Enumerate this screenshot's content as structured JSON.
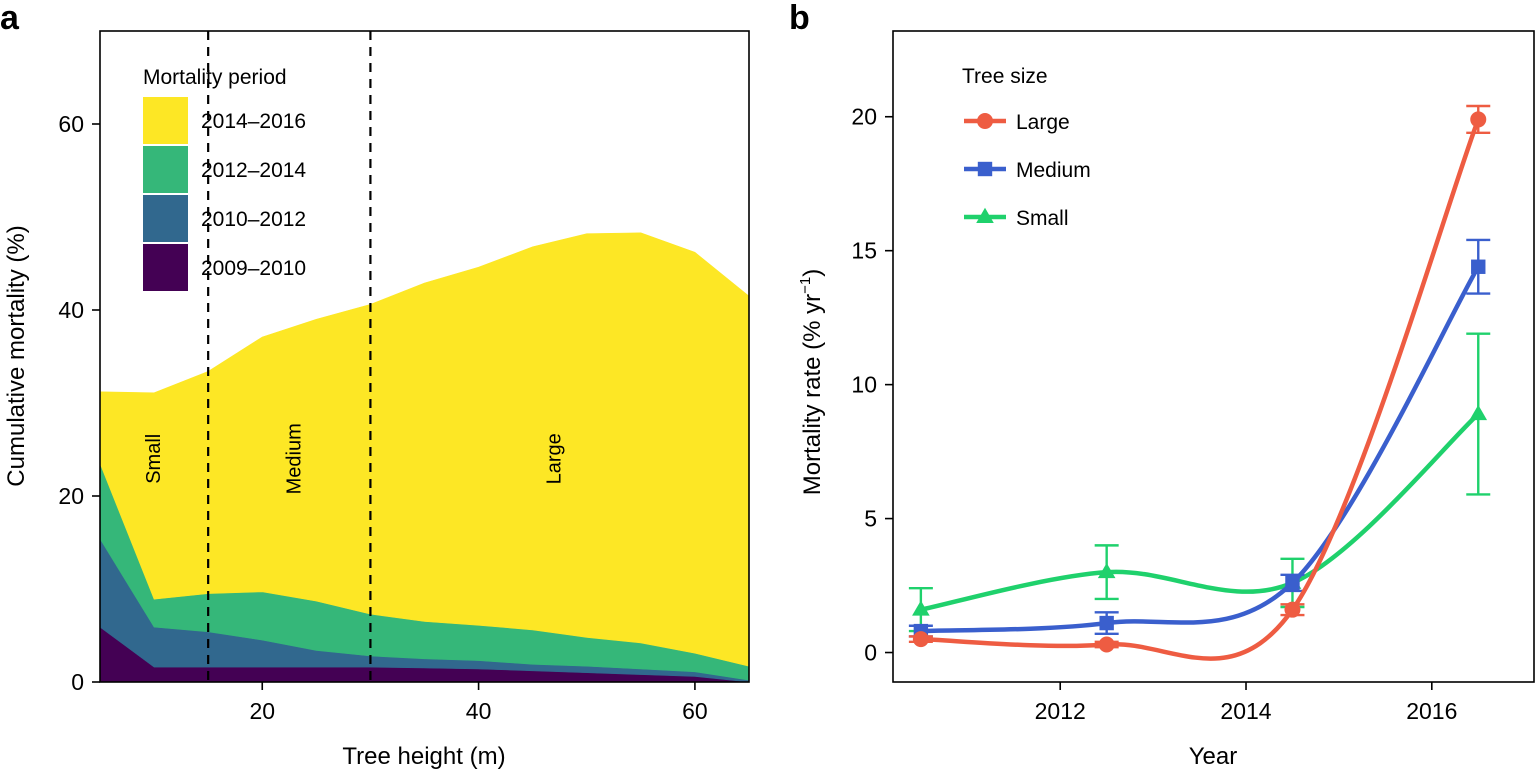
{
  "chart_data": [
    {
      "panel": "a",
      "type": "area",
      "stacked": true,
      "xlabel": "Tree height (m)",
      "ylabel": "Cumulative mortality (%)",
      "xlim": [
        5,
        65
      ],
      "ylim": [
        0,
        70
      ],
      "xticks": [
        20,
        40,
        60
      ],
      "yticks": [
        0,
        20,
        40,
        60
      ],
      "x": [
        5,
        10,
        15,
        20,
        25,
        30,
        35,
        40,
        45,
        50,
        55,
        60,
        65
      ],
      "series": [
        {
          "name": "2009–2010",
          "color": "#440154",
          "values": [
            5.9,
            1.6,
            1.6,
            1.6,
            1.6,
            1.6,
            1.5,
            1.4,
            1.2,
            1.0,
            0.8,
            0.6,
            0.0
          ]
        },
        {
          "name": "2010–2012",
          "color": "#31688e",
          "values": [
            9.5,
            4.3,
            3.8,
            2.9,
            1.8,
            1.2,
            1.0,
            0.9,
            0.7,
            0.7,
            0.6,
            0.5,
            0.2
          ]
        },
        {
          "name": "2012–2014",
          "color": "#35b779",
          "values": [
            8.1,
            3.0,
            4.1,
            5.2,
            5.3,
            4.5,
            4.0,
            3.8,
            3.7,
            3.1,
            2.8,
            2.0,
            1.5
          ]
        },
        {
          "name": "2014–2016",
          "color": "#fde725",
          "values": [
            7.7,
            22.2,
            23.9,
            27.4,
            30.3,
            33.3,
            36.4,
            38.5,
            41.2,
            43.4,
            44.1,
            43.1,
            39.8
          ]
        }
      ],
      "vlines": [
        15,
        30
      ],
      "region_labels": [
        {
          "text": "Small",
          "x": 10,
          "y": 24
        },
        {
          "text": "Medium",
          "x": 23,
          "y": 24
        },
        {
          "text": "Large",
          "x": 47,
          "y": 24
        }
      ],
      "legend": {
        "title": "Mortality period",
        "position": "top-left",
        "order": [
          "2014–2016",
          "2012–2014",
          "2010–2012",
          "2009–2010"
        ]
      }
    },
    {
      "panel": "b",
      "type": "line",
      "xlabel": "Year",
      "ylabel": "Mortality rate (% yr",
      "ylabel_sup": "−1",
      "ylabel_close": ")",
      "xlim": [
        2010.2,
        2017.1
      ],
      "ylim": [
        -1.1,
        23.2
      ],
      "xticks": [
        2012,
        2014,
        2016
      ],
      "yticks": [
        0,
        5,
        10,
        15,
        20
      ],
      "x": [
        2010.5,
        2012.5,
        2014.5,
        2016.5
      ],
      "series": [
        {
          "name": "Large",
          "color": "#ee5c42",
          "marker": "circle",
          "values": [
            0.5,
            0.3,
            1.6,
            19.9
          ],
          "err": [
            0.1,
            0.1,
            0.2,
            0.5
          ]
        },
        {
          "name": "Medium",
          "color": "#3a5fcd",
          "marker": "square",
          "values": [
            0.8,
            1.1,
            2.6,
            14.4
          ],
          "err": [
            0.2,
            0.4,
            0.3,
            1.0
          ]
        },
        {
          "name": "Small",
          "color": "#1fd16c",
          "marker": "triangle",
          "values": [
            1.6,
            3.0,
            2.6,
            8.9
          ],
          "err": [
            0.8,
            1.0,
            0.9,
            3.0
          ]
        }
      ],
      "legend": {
        "title": "Tree size",
        "position": "top-left"
      }
    }
  ]
}
